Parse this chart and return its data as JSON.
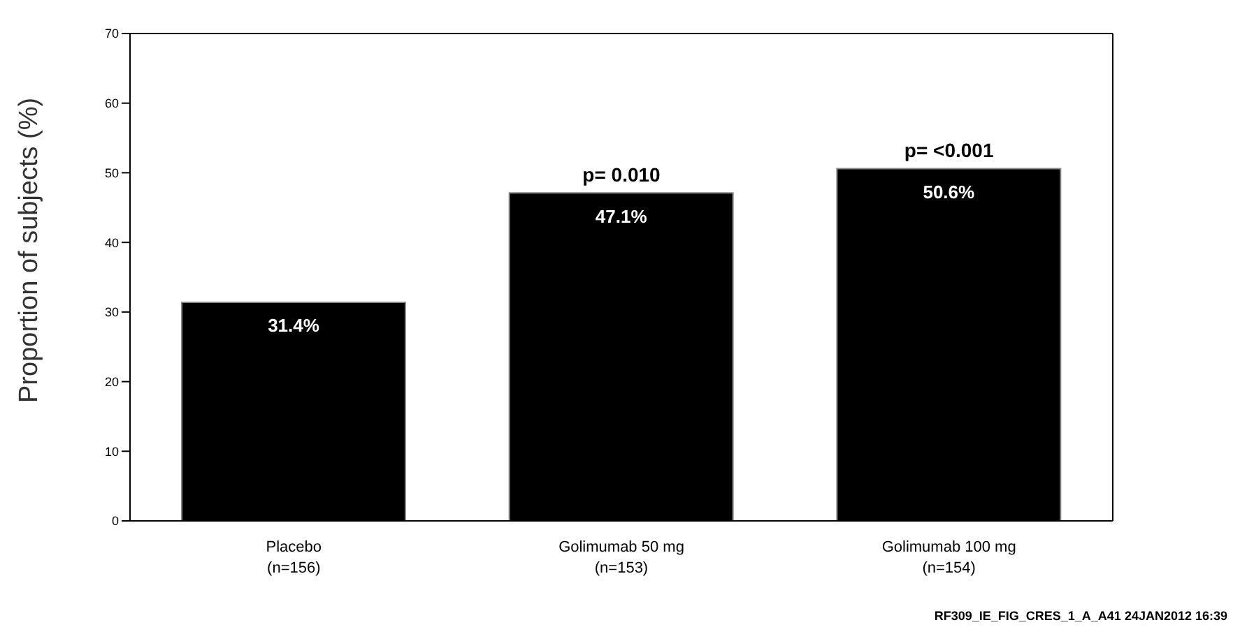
{
  "chart_data": {
    "type": "bar",
    "ylabel": "Proportion of subjects (%)",
    "categories": [
      "Placebo\n(n=156)",
      "Golimumab 50 mg\n(n=153)",
      "Golimumab 100 mg\n(n=154)"
    ],
    "values": [
      31.4,
      47.1,
      50.6
    ],
    "value_labels": [
      "31.4%",
      "47.1%",
      "50.6%"
    ],
    "color": "#000000",
    "ylim": [
      0,
      70
    ],
    "yticks": [
      0,
      10,
      20,
      30,
      40,
      50,
      60,
      70
    ],
    "grid": false,
    "legend": false,
    "annotations": [
      {
        "text": "p=  0.010",
        "x": "Golimumab 50 mg\n(n=153)",
        "y": 47.1
      },
      {
        "text": "p=  <0.001",
        "x": "Golimumab 100 mg\n(n=154)",
        "y": 50.6
      },
      "RF309_IE_FIG_CRES_1_A_A41  24JAN2012 16:39"
    ]
  }
}
